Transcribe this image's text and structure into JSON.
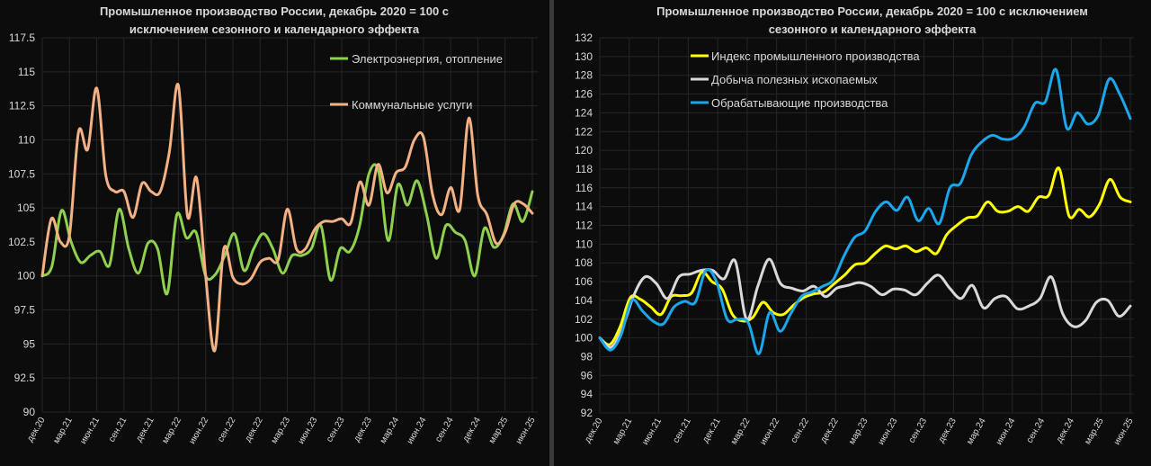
{
  "chart_data": [
    {
      "type": "line",
      "title_lines": [
        "Промышленное производство России, декабрь 2020 = 100 с",
        "исключением сезонного и календарного эффекта"
      ],
      "xlabel": "",
      "ylabel": "",
      "ylim": [
        90,
        117.5
      ],
      "y_ticks": [
        "90",
        "92.5",
        "95",
        "97.5",
        "100",
        "102.5",
        "105",
        "107.5",
        "110",
        "112.5",
        "115",
        "117.5"
      ],
      "x_ticks": [
        "дек.20",
        "мар.21",
        "июн.21",
        "сен.21",
        "дек.21",
        "мар.22",
        "июн.22",
        "сен.22",
        "дек.22",
        "мар.23",
        "июн.23",
        "сен.23",
        "дек.23",
        "мар.24",
        "июн.24",
        "сен.24",
        "дек.24",
        "мар.25",
        "июн.25"
      ],
      "grid": true,
      "legend": "right, inside plot",
      "series": [
        {
          "name": "Электроэнергия, отопление",
          "color": "#8fd14f",
          "values": [
            100,
            100.7,
            104.8,
            102.5,
            101.0,
            101.5,
            101.8,
            100.8,
            104.9,
            102.0,
            100.2,
            102.4,
            102.0,
            98.7,
            104.5,
            102.8,
            103.2,
            100.0,
            100.1,
            101.5,
            103.1,
            100.4,
            102.0,
            103.1,
            102.0,
            100.2,
            101.5,
            101.5,
            102.0,
            103.7,
            99.7,
            102.0,
            101.8,
            103.6,
            107.5,
            107.7,
            102.6,
            106.7,
            105.2,
            107.0,
            104.5,
            101.3,
            103.7,
            103.2,
            102.6,
            100.0,
            103.5,
            102.1,
            103.0,
            105.3,
            104.0,
            106.2
          ]
        },
        {
          "name": "Коммунальные услуги",
          "color": "#f4b183",
          "values": [
            100,
            104.2,
            102.5,
            103.0,
            110.6,
            109.3,
            113.8,
            107.4,
            106.2,
            106.2,
            104.3,
            106.8,
            106.2,
            106.2,
            109.1,
            114.0,
            104.4,
            107.2,
            100.0,
            94.5,
            102.0,
            99.9,
            99.4,
            99.8,
            101.0,
            101.3,
            101.2,
            104.9,
            102.0,
            102.0,
            103.4,
            104.0,
            104.0,
            104.2,
            103.9,
            106.9,
            105.2,
            108.2,
            106.1,
            107.6,
            108.0,
            110.0,
            110.2,
            106.0,
            104.5,
            106.5,
            104.9,
            111.6,
            105.9,
            104.5,
            102.4,
            103.2,
            105.3,
            105.3,
            104.6
          ]
        }
      ]
    },
    {
      "type": "line",
      "title_lines": [
        "Промышленное производство России, декабрь 2020 = 100 с исключением",
        "сезонного и календарного эффекта"
      ],
      "xlabel": "",
      "ylabel": "",
      "ylim": [
        92,
        132
      ],
      "y_ticks": [
        "92",
        "94",
        "96",
        "98",
        "100",
        "102",
        "104",
        "106",
        "108",
        "110",
        "112",
        "114",
        "116",
        "118",
        "120",
        "122",
        "124",
        "126",
        "128",
        "130",
        "132"
      ],
      "x_ticks": [
        "дек.20",
        "мар.21",
        "июн.21",
        "сен.21",
        "дек.21",
        "мар.22",
        "июн.22",
        "сен.22",
        "дек.22",
        "мар.23",
        "июн.23",
        "сен.23",
        "дек.23",
        "мар.24",
        "июн.24",
        "сен.24",
        "дек.24",
        "мар.25",
        "июн.25"
      ],
      "grid": true,
      "legend": "top-left, inside plot",
      "series": [
        {
          "name": "Индекс промышленного производства",
          "color": "#ffff00",
          "values": [
            100,
            99.3,
            101.2,
            104.3,
            104.1,
            103.3,
            102.5,
            104.4,
            104.5,
            104.8,
            107.0,
            106.0,
            105.2,
            102.5,
            101.8,
            102.2,
            103.8,
            102.7,
            102.5,
            103.5,
            104.3,
            104.7,
            104.9,
            105.8,
            106.7,
            107.8,
            108.0,
            109.0,
            109.8,
            109.5,
            109.8,
            109.2,
            109.6,
            109.0,
            111.0,
            112.0,
            112.8,
            113.0,
            114.5,
            113.5,
            113.5,
            114.0,
            113.5,
            115.0,
            115.2,
            118.1,
            113.0,
            113.7,
            112.9,
            114.3,
            116.9,
            115.0,
            114.5
          ]
        },
        {
          "name": "Добыча полезных ископаемых",
          "color": "#d9d9d9",
          "values": [
            100,
            99.0,
            101.0,
            104.5,
            106.5,
            105.8,
            104.2,
            106.5,
            106.8,
            107.2,
            107.2,
            106.3,
            108.2,
            102.0,
            105.5,
            108.4,
            105.8,
            105.3,
            105.0,
            105.5,
            104.4,
            105.3,
            105.6,
            105.9,
            105.5,
            104.6,
            105.2,
            105.1,
            104.6,
            105.8,
            106.7,
            105.3,
            104.2,
            105.6,
            103.2,
            104.2,
            104.4,
            103.1,
            103.4,
            104.2,
            106.5,
            102.6,
            101.2,
            101.8,
            103.8,
            104.0,
            102.3,
            103.4
          ]
        },
        {
          "name": "Обрабатывающие производства",
          "color": "#1aa7ec",
          "values": [
            100,
            98.7,
            100.3,
            104.0,
            102.9,
            101.8,
            101.5,
            103.3,
            103.9,
            103.8,
            107.2,
            106.0,
            102.0,
            102.0,
            101.6,
            98.3,
            102.7,
            100.7,
            102.6,
            104.4,
            104.9,
            105.5,
            106.2,
            108.7,
            110.7,
            111.4,
            113.5,
            114.5,
            113.6,
            115.0,
            112.5,
            113.8,
            112.2,
            116.0,
            116.5,
            119.5,
            120.9,
            121.6,
            121.2,
            121.3,
            122.5,
            125.0,
            125.2,
            128.6,
            122.4,
            124.0,
            122.8,
            123.8,
            127.6,
            126.0,
            123.4
          ]
        }
      ]
    }
  ]
}
